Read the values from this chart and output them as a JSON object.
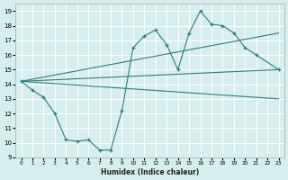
{
  "xlabel": "Humidex (Indice chaleur)",
  "ylabel": "",
  "bg_color": "#d6eeed",
  "grid_color": "#ffffff",
  "line_color": "#2e7d7d",
  "xlim": [
    -0.5,
    23.5
  ],
  "ylim": [
    9,
    19.5
  ],
  "yticks": [
    9,
    10,
    11,
    12,
    13,
    14,
    15,
    16,
    17,
    18,
    19
  ],
  "xticks": [
    0,
    1,
    2,
    3,
    4,
    5,
    6,
    7,
    8,
    9,
    10,
    11,
    12,
    13,
    14,
    15,
    16,
    17,
    18,
    19,
    20,
    21,
    22,
    23
  ],
  "main_x": [
    0,
    1,
    2,
    3,
    4,
    5,
    6,
    7,
    8,
    9,
    10,
    11,
    12,
    13,
    14,
    15,
    16,
    17,
    18,
    19,
    20,
    21,
    23
  ],
  "main_y": [
    14.2,
    13.6,
    13.1,
    12.0,
    10.2,
    10.1,
    10.2,
    9.5,
    9.5,
    12.2,
    16.5,
    17.3,
    17.7,
    16.7,
    15.0,
    17.5,
    19.0,
    18.1,
    18.0,
    17.5,
    16.5,
    16.0,
    15.0
  ],
  "line1_x": [
    0,
    23
  ],
  "line1_y": [
    14.2,
    15.0
  ],
  "line2_x": [
    0,
    23
  ],
  "line2_y": [
    14.2,
    17.5
  ],
  "line3_x": [
    0,
    23
  ],
  "line3_y": [
    14.2,
    13.0
  ]
}
